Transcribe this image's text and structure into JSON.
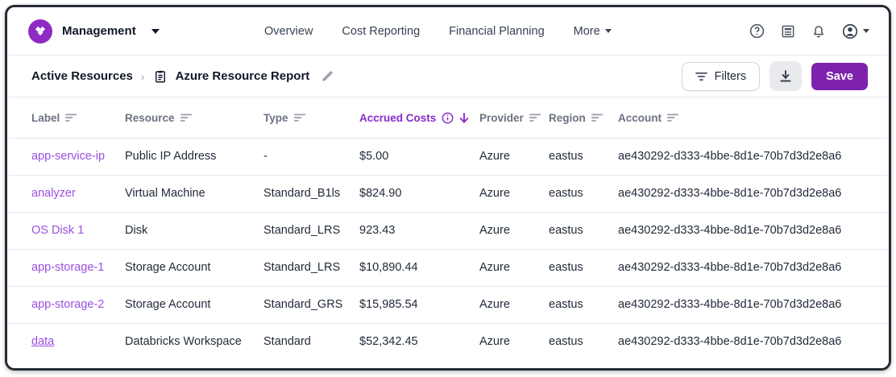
{
  "nav": {
    "brand": {
      "label": "Management",
      "logo_icon": "brand-diamonds-icon"
    },
    "items": [
      {
        "label": "Overview",
        "caret": false
      },
      {
        "label": "Cost Reporting",
        "caret": false
      },
      {
        "label": "Financial Planning",
        "caret": false
      },
      {
        "label": "More",
        "caret": true
      }
    ],
    "icons": [
      "help-icon",
      "changelog-icon",
      "notifications-icon",
      "account-icon"
    ]
  },
  "toolbar": {
    "breadcrumb": {
      "parent": "Active Resources",
      "separator": "›",
      "current": "Azure Resource Report"
    },
    "filters_label": "Filters",
    "save_label": "Save"
  },
  "table": {
    "columns": [
      {
        "label": "Label",
        "sortable": true
      },
      {
        "label": "Resource",
        "sortable": true
      },
      {
        "label": "Type",
        "sortable": true
      },
      {
        "label": "Accrued Costs",
        "info": true,
        "active_sort": "desc"
      },
      {
        "label": "Provider",
        "sortable": true
      },
      {
        "label": "Region",
        "sortable": true
      },
      {
        "label": "Account",
        "sortable": true
      }
    ],
    "rows": [
      {
        "label": "app-service-ip",
        "resource": "Public IP Address",
        "type": "-",
        "accrued_costs": "$5.00",
        "provider": "Azure",
        "region": "eastus",
        "account": "ae430292-d333-4bbe-8d1e-70b7d3d2e8a6",
        "underlined": false
      },
      {
        "label": "analyzer",
        "resource": "Virtual Machine",
        "type": "Standard_B1ls",
        "accrued_costs": "$824.90",
        "provider": "Azure",
        "region": "eastus",
        "account": "ae430292-d333-4bbe-8d1e-70b7d3d2e8a6",
        "underlined": false
      },
      {
        "label": "OS Disk 1",
        "resource": "Disk",
        "type": "Standard_LRS",
        "accrued_costs": "923.43",
        "provider": "Azure",
        "region": "eastus",
        "account": "ae430292-d333-4bbe-8d1e-70b7d3d2e8a6",
        "underlined": false
      },
      {
        "label": "app-storage-1",
        "resource": "Storage Account",
        "type": "Standard_LRS",
        "accrued_costs": "$10,890.44",
        "provider": "Azure",
        "region": "eastus",
        "account": "ae430292-d333-4bbe-8d1e-70b7d3d2e8a6",
        "underlined": false
      },
      {
        "label": "app-storage-2",
        "resource": "Storage Account",
        "type": "Standard_GRS",
        "accrued_costs": "$15,985.54",
        "provider": "Azure",
        "region": "eastus",
        "account": "ae430292-d333-4bbe-8d1e-70b7d3d2e8a6",
        "underlined": false
      },
      {
        "label": "data",
        "resource": "Databricks Workspace",
        "type": "Standard",
        "accrued_costs": "$52,342.45",
        "provider": "Azure",
        "region": "eastus",
        "account": "ae430292-d333-4bbe-8d1e-70b7d3d2e8a6",
        "underlined": true
      }
    ]
  },
  "colors": {
    "accent_purple": "#8a2bc9",
    "link_purple": "#9c4fe0",
    "save_button_purple": "#7e22ad",
    "logo_purple": "#8e2bc4",
    "border_gray": "#e5e7eb"
  }
}
